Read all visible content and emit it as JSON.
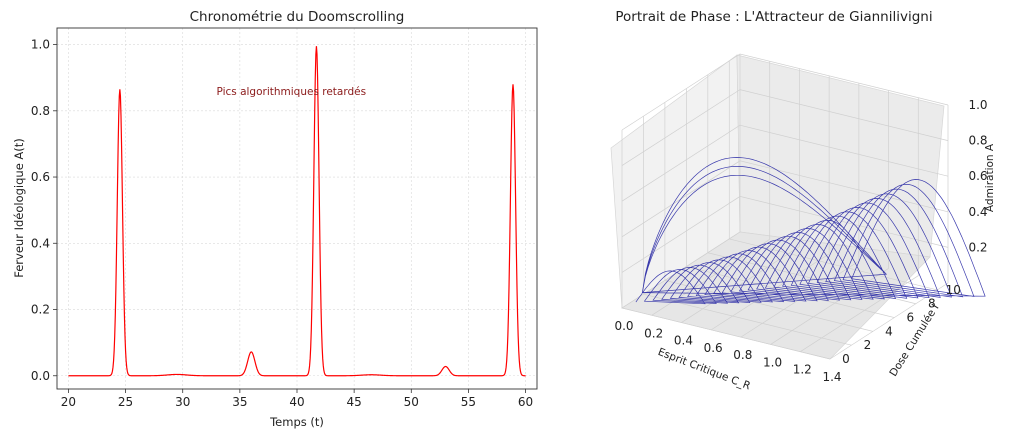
{
  "chart_data": [
    {
      "type": "line",
      "title": "Chronométrie du Doomscrolling",
      "xlabel": "Temps (t)",
      "ylabel": "Ferveur Idéologique A(t)",
      "xlim": [
        19,
        61
      ],
      "ylim": [
        -0.04,
        1.05
      ],
      "xticks": [
        20,
        25,
        30,
        35,
        40,
        45,
        50,
        55,
        60
      ],
      "yticks": [
        0.0,
        0.2,
        0.4,
        0.6,
        0.8,
        1.0
      ],
      "grid": true,
      "series_color": "#ff0000",
      "annotation": {
        "text": "Pics algorithmiques retardés",
        "x": 39.5,
        "y": 0.86,
        "color": "#8b1a1a"
      },
      "peaks": [
        {
          "t": 24.5,
          "height": 0.865
        },
        {
          "t": 36.0,
          "height": 0.072
        },
        {
          "t": 41.7,
          "height": 0.995
        },
        {
          "t": 53.0,
          "height": 0.028
        },
        {
          "t": 58.9,
          "height": 0.88
        }
      ],
      "baseline": 0.0
    },
    {
      "type": "line3d",
      "title": "Portrait de Phase : L'Attracteur de Giannilivigni",
      "xlabel": "Esprit Critique C_R",
      "ylabel": "Dose Cumulée I",
      "zlabel": "Admiration A",
      "xlim": [
        0.0,
        1.4
      ],
      "ylim": [
        0,
        11
      ],
      "zlim": [
        0.0,
        1.0
      ],
      "xticks": [
        "0.0",
        "0.2",
        "0.4",
        "0.6",
        "0.8",
        "1.0",
        "1.2",
        "1.4"
      ],
      "yticks": [
        "0",
        "2",
        "4",
        "6",
        "8",
        "10"
      ],
      "zticks": [
        "0.2",
        "0.4",
        "0.6",
        "0.8",
        "1.0"
      ],
      "series_color": "#1a1aa0"
    }
  ]
}
